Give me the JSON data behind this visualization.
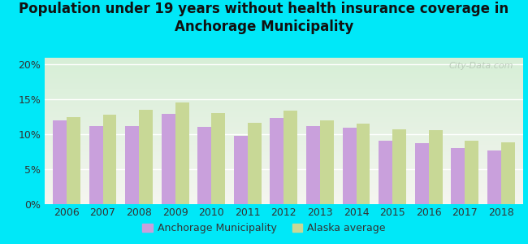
{
  "title": "Population under 19 years without health insurance coverage in\nAnchorage Municipality",
  "years": [
    2006,
    2007,
    2008,
    2009,
    2010,
    2011,
    2012,
    2013,
    2014,
    2015,
    2016,
    2017,
    2018
  ],
  "anchorage": [
    12.0,
    11.1,
    11.1,
    12.9,
    11.0,
    9.7,
    12.3,
    11.1,
    10.9,
    9.1,
    8.7,
    8.0,
    7.6
  ],
  "alaska": [
    12.4,
    12.8,
    13.5,
    14.5,
    13.0,
    11.6,
    13.4,
    12.0,
    11.5,
    10.7,
    10.6,
    9.1,
    8.8
  ],
  "anchorage_color": "#c9a0dc",
  "alaska_color": "#c8d896",
  "background_outer": "#00e8f8",
  "grad_top": "#d6eed6",
  "grad_bottom": "#f5f5f0",
  "ylim": [
    0,
    21
  ],
  "yticks": [
    0,
    5,
    10,
    15,
    20
  ],
  "ytick_labels": [
    "0%",
    "5%",
    "10%",
    "15%",
    "20%"
  ],
  "legend_anchorage": "Anchorage Municipality",
  "legend_alaska": "Alaska average",
  "watermark": "City-Data.com",
  "bar_width": 0.38,
  "title_fontsize": 12,
  "tick_fontsize": 9,
  "legend_fontsize": 9
}
